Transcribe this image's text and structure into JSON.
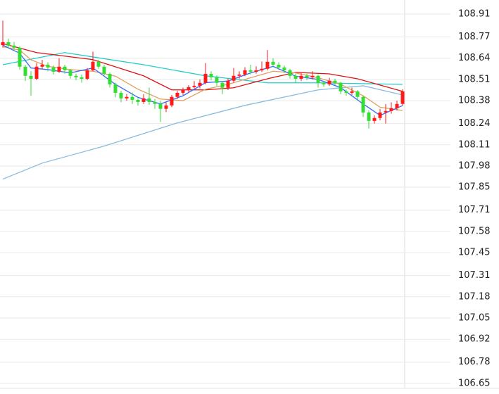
{
  "chart_data": {
    "type": "candlestick",
    "open": [
      108.72,
      108.738,
      108.717,
      108.704,
      108.588,
      108.532,
      108.514,
      108.588,
      108.6,
      108.583,
      108.557,
      108.588,
      108.566,
      108.532,
      108.523,
      108.514,
      108.566,
      108.618,
      108.588,
      108.544,
      108.48,
      108.428,
      108.394,
      108.403,
      108.385,
      108.372,
      108.394,
      108.372,
      108.36,
      108.33,
      108.351,
      108.403,
      108.428,
      108.446,
      108.463,
      108.471,
      108.489,
      108.544,
      108.523,
      108.489,
      108.459,
      108.502,
      108.532,
      108.54,
      108.566,
      108.557,
      108.566,
      108.575,
      108.618,
      108.6,
      108.583,
      108.566,
      108.532,
      108.514,
      108.532,
      108.523,
      108.532,
      108.489,
      108.48,
      108.502,
      108.489,
      108.437,
      108.428,
      108.437,
      108.403,
      108.308,
      108.256,
      108.274,
      108.308,
      108.317,
      108.334,
      108.36
    ],
    "high": [
      108.87,
      108.76,
      108.74,
      108.712,
      108.6,
      108.56,
      108.61,
      108.63,
      108.615,
      108.595,
      108.64,
      108.6,
      108.575,
      108.545,
      108.54,
      108.58,
      108.68,
      108.63,
      108.6,
      108.552,
      108.49,
      108.44,
      108.42,
      108.43,
      108.395,
      108.42,
      108.46,
      108.39,
      108.38,
      108.37,
      108.415,
      108.44,
      108.46,
      108.475,
      108.5,
      108.51,
      108.61,
      108.56,
      108.535,
      108.5,
      108.515,
      108.58,
      108.56,
      108.585,
      108.6,
      108.59,
      108.62,
      108.69,
      108.64,
      108.615,
      108.595,
      108.575,
      108.545,
      108.55,
      108.545,
      108.56,
      108.54,
      108.5,
      108.52,
      108.515,
      108.495,
      108.45,
      108.46,
      108.445,
      108.41,
      108.32,
      108.29,
      108.33,
      108.36,
      108.37,
      108.38,
      108.45
    ],
    "low": [
      108.705,
      108.7,
      108.69,
      108.57,
      108.5,
      108.41,
      108.505,
      108.575,
      108.56,
      108.54,
      108.55,
      108.545,
      108.515,
      108.505,
      108.49,
      108.505,
      108.56,
      108.575,
      108.53,
      108.46,
      108.4,
      108.37,
      108.38,
      108.36,
      108.35,
      108.36,
      108.355,
      108.33,
      108.25,
      108.31,
      108.34,
      108.39,
      108.415,
      108.43,
      108.455,
      108.455,
      108.48,
      108.505,
      108.47,
      108.42,
      108.445,
      108.49,
      108.515,
      108.53,
      108.54,
      108.545,
      108.555,
      108.565,
      108.585,
      108.57,
      108.55,
      108.515,
      108.49,
      108.5,
      108.505,
      108.51,
      108.46,
      108.465,
      108.47,
      108.475,
      108.42,
      108.41,
      108.415,
      108.38,
      108.28,
      108.21,
      108.24,
      108.26,
      108.24,
      108.3,
      108.32,
      108.35
    ],
    "close": [
      108.738,
      108.717,
      108.704,
      108.588,
      108.532,
      108.514,
      108.588,
      108.6,
      108.583,
      108.557,
      108.588,
      108.566,
      108.532,
      108.523,
      108.514,
      108.566,
      108.618,
      108.588,
      108.544,
      108.48,
      108.428,
      108.394,
      108.403,
      108.385,
      108.372,
      108.394,
      108.372,
      108.36,
      108.33,
      108.351,
      108.403,
      108.428,
      108.446,
      108.463,
      108.471,
      108.489,
      108.544,
      108.523,
      108.489,
      108.459,
      108.502,
      108.532,
      108.54,
      108.566,
      108.557,
      108.566,
      108.575,
      108.618,
      108.6,
      108.583,
      108.566,
      108.532,
      108.514,
      108.532,
      108.523,
      108.532,
      108.489,
      108.48,
      108.502,
      108.489,
      108.437,
      108.428,
      108.437,
      108.403,
      108.308,
      108.256,
      108.274,
      108.308,
      108.317,
      108.334,
      108.36,
      108.437
    ],
    "up_color": "#ff1a1a",
    "down_color": "#33dd33",
    "lines": [
      {
        "color": "#88bbdd",
        "x": [
          0,
          7,
          18,
          31,
          43,
          56,
          64,
          71
        ],
        "values": [
          107.9,
          107.998,
          108.102,
          108.244,
          108.351,
          108.446,
          108.471,
          108.415
        ]
      },
      {
        "color": "#22cccc",
        "x": [
          0,
          11,
          25,
          36,
          47,
          56,
          71
        ],
        "values": [
          108.6,
          108.674,
          108.6,
          108.532,
          108.489,
          108.489,
          108.48
        ]
      },
      {
        "color": "#dd1111",
        "x": [
          0,
          6,
          16,
          25,
          30,
          36,
          41,
          47,
          52,
          58,
          63,
          71
        ],
        "values": [
          108.729,
          108.674,
          108.631,
          108.532,
          108.446,
          108.446,
          108.459,
          108.514,
          108.553,
          108.544,
          108.514,
          108.437
        ]
      },
      {
        "color": "#e0a060",
        "x": [
          0,
          3,
          5,
          8,
          12,
          16,
          20,
          24,
          28,
          32,
          36,
          40,
          44,
          48,
          52,
          56,
          60,
          64,
          67,
          71
        ],
        "values": [
          108.71,
          108.69,
          108.63,
          108.59,
          108.57,
          108.56,
          108.53,
          108.45,
          108.39,
          108.38,
          108.45,
          108.48,
          108.52,
          108.56,
          108.55,
          108.52,
          108.48,
          108.41,
          108.34,
          108.32
        ]
      },
      {
        "color": "#3366ff",
        "x": [
          0,
          3,
          5,
          8,
          12,
          16,
          20,
          24,
          28,
          32,
          36,
          40,
          44,
          48,
          52,
          56,
          60,
          64,
          67,
          71
        ],
        "values": [
          108.72,
          108.67,
          108.58,
          108.57,
          108.55,
          108.58,
          108.48,
          108.4,
          108.36,
          108.41,
          108.49,
          108.5,
          108.55,
          108.59,
          108.53,
          108.51,
          108.46,
          108.36,
          108.29,
          108.35
        ]
      }
    ],
    "ylim": [
      106.585,
      108.996
    ],
    "yticks": [
      108.91,
      108.77,
      108.64,
      108.51,
      108.38,
      108.24,
      108.11,
      107.98,
      107.85,
      107.71,
      107.58,
      107.45,
      107.31,
      107.18,
      107.05,
      106.92,
      106.78,
      106.65
    ],
    "grid": true
  }
}
